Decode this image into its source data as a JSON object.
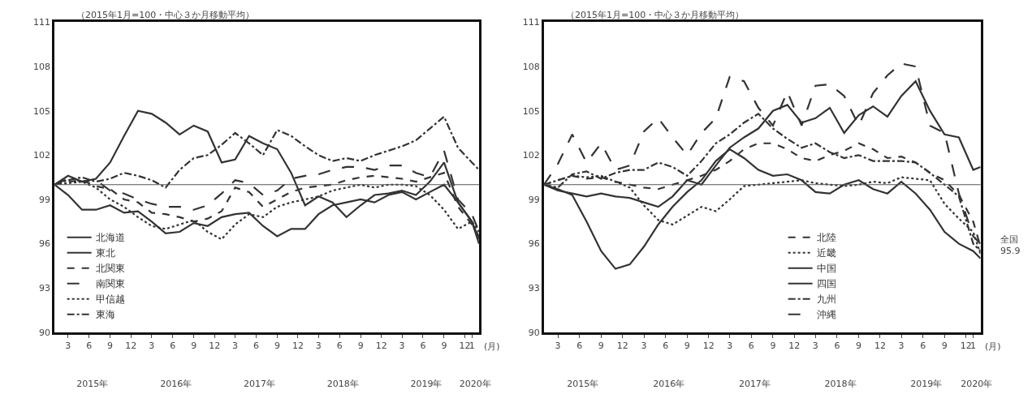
{
  "chart_data": [
    {
      "type": "line",
      "subtitle": "（2015年1月=100・中心３か月移動平均）",
      "xlabel": "(月)",
      "x": [
        "2015-01",
        "2015-03",
        "2015-05",
        "2015-07",
        "2015-09",
        "2015-11",
        "2016-01",
        "2016-03",
        "2016-05",
        "2016-07",
        "2016-09",
        "2016-11",
        "2017-01",
        "2017-03",
        "2017-05",
        "2017-07",
        "2017-09",
        "2017-11",
        "2018-01",
        "2018-03",
        "2018-05",
        "2018-07",
        "2018-09",
        "2018-11",
        "2019-01",
        "2019-03",
        "2019-05",
        "2019-07",
        "2019-09",
        "2019-11",
        "2020-01",
        "2020-02"
      ],
      "series": [
        {
          "name": "北海道",
          "color": "#333333",
          "line_style": "solid",
          "values": [
            100,
            100.6,
            100.2,
            100.4,
            101.5,
            103.3,
            105,
            104.8,
            104.2,
            103.4,
            104,
            103.6,
            101.5,
            101.7,
            103.3,
            102.8,
            102.4,
            100.8,
            98.6,
            99.2,
            98.8,
            97.8,
            98.6,
            99.3,
            99.4,
            99.6,
            99.3,
            100.2,
            101.5,
            98.8,
            97.5,
            96
          ]
        },
        {
          "name": "東北",
          "color": "#333333",
          "line_style": "solid",
          "values": [
            100,
            99.3,
            98.3,
            98.3,
            98.6,
            98.1,
            98.2,
            97.5,
            96.7,
            96.8,
            97.4,
            97.2,
            97.8,
            98,
            98.1,
            97.2,
            96.5,
            97,
            97,
            98,
            98.6,
            98.8,
            99,
            98.8,
            99.3,
            99.5,
            99,
            99.5,
            100,
            98.8,
            97.5,
            96.3
          ]
        },
        {
          "name": "北関東",
          "color": "#333333",
          "line_style": "dashed",
          "values": [
            100,
            100.2,
            100.3,
            99.9,
            99.7,
            99,
            98.8,
            98.1,
            98,
            97.8,
            97.5,
            97.7,
            98.2,
            99.8,
            99.5,
            98.5,
            99,
            99.5,
            99.8,
            99.9,
            100,
            100.3,
            100.5,
            100.6,
            100.5,
            100.4,
            100.2,
            100.5,
            100.8,
            98.5,
            97.3,
            96.5
          ]
        },
        {
          "name": "南関東",
          "color": "#333333",
          "line_style": "longdash",
          "values": [
            100,
            100.4,
            100.2,
            100.3,
            99.6,
            99.4,
            99,
            98.7,
            98.5,
            98.5,
            98.3,
            98.6,
            99.4,
            100.3,
            100.1,
            99.3,
            99.6,
            100.4,
            100.6,
            100.7,
            101,
            101.2,
            101.2,
            101,
            101.3,
            101.3,
            100.8,
            100.5,
            102.3,
            99,
            98,
            96.8
          ]
        },
        {
          "name": "甲信越",
          "color": "#333333",
          "line_style": "dotted",
          "values": [
            100,
            100.1,
            100.2,
            99.8,
            99,
            98.5,
            97.8,
            97.2,
            97,
            97.3,
            97.6,
            96.8,
            96.3,
            97.3,
            98,
            97.8,
            98.5,
            98.8,
            99,
            99.2,
            99.6,
            99.8,
            100,
            99.8,
            100,
            100,
            99.9,
            99.3,
            98.3,
            97,
            97.5,
            96.8
          ]
        },
        {
          "name": "東海",
          "color": "#333333",
          "line_style": "dashdot",
          "values": [
            100,
            100.3,
            100.5,
            100.2,
            100.4,
            100.8,
            100.6,
            100.3,
            99.8,
            101,
            101.8,
            102,
            102.7,
            103.5,
            102.8,
            102,
            103.7,
            103.3,
            102.6,
            102,
            101.6,
            101.8,
            101.6,
            102,
            102.3,
            102.6,
            103,
            103.8,
            104.6,
            102.5,
            101.5,
            101
          ]
        }
      ],
      "xlim": [
        "2015-01",
        "2020-02"
      ],
      "xticks": [
        {
          "value": "2015-03",
          "label": "3"
        },
        {
          "value": "2015-06",
          "label": "6"
        },
        {
          "value": "2015-09",
          "label": "9"
        },
        {
          "value": "2015-12",
          "label": "12"
        },
        {
          "value": "2016-03",
          "label": "3"
        },
        {
          "value": "2016-06",
          "label": "6"
        },
        {
          "value": "2016-09",
          "label": "9"
        },
        {
          "value": "2016-12",
          "label": "12"
        },
        {
          "value": "2017-03",
          "label": "3"
        },
        {
          "value": "2017-06",
          "label": "6"
        },
        {
          "value": "2017-09",
          "label": "9"
        },
        {
          "value": "2017-12",
          "label": "12"
        },
        {
          "value": "2018-03",
          "label": "3"
        },
        {
          "value": "2018-06",
          "label": "6"
        },
        {
          "value": "2018-09",
          "label": "9"
        },
        {
          "value": "2018-12",
          "label": "12"
        },
        {
          "value": "2019-03",
          "label": "3"
        },
        {
          "value": "2019-06",
          "label": "6"
        },
        {
          "value": "2019-09",
          "label": "9"
        },
        {
          "value": "2019-12",
          "label": "12"
        },
        {
          "value": "2020-01",
          "label": "1"
        }
      ],
      "x2lim": [
        "2015-01",
        "2020-02"
      ],
      "x2ticks": [
        {
          "value": "2015-06-15",
          "label": "2015年"
        },
        {
          "value": "2016-06-15",
          "label": "2016年"
        },
        {
          "value": "2017-06-15",
          "label": "2017年"
        },
        {
          "value": "2018-06-15",
          "label": "2018年"
        },
        {
          "value": "2019-06-15",
          "label": "2019年"
        },
        {
          "value": "2020-01-15",
          "label": "2020年"
        }
      ],
      "ylim": [
        90,
        111
      ],
      "yticks": [
        90,
        93,
        96,
        99,
        102,
        105,
        108,
        111
      ],
      "ref_lines": [
        {
          "axis": "y",
          "value": 100,
          "color": "#555555"
        }
      ],
      "legend": "bottom left",
      "marker": "none"
    },
    {
      "type": "line",
      "subtitle": "（2015年1月=100・中心３か月移動平均）",
      "xlabel": "(月)",
      "x": [
        "2015-01",
        "2015-03",
        "2015-05",
        "2015-07",
        "2015-09",
        "2015-11",
        "2016-01",
        "2016-03",
        "2016-05",
        "2016-07",
        "2016-09",
        "2016-11",
        "2017-01",
        "2017-03",
        "2017-05",
        "2017-07",
        "2017-09",
        "2017-11",
        "2018-01",
        "2018-03",
        "2018-05",
        "2018-07",
        "2018-09",
        "2018-11",
        "2019-01",
        "2019-03",
        "2019-05",
        "2019-07",
        "2019-09",
        "2019-11",
        "2020-01",
        "2020-02"
      ],
      "series": [
        {
          "name": "北陸",
          "color": "#333333",
          "line_style": "dashed",
          "values": [
            100,
            100.3,
            100.6,
            100.4,
            100.5,
            100.2,
            100,
            99.8,
            99.7,
            100,
            100.3,
            100.6,
            101,
            101.6,
            102.4,
            102.8,
            102.8,
            102.4,
            101.8,
            101.6,
            102,
            102.3,
            102.8,
            102.4,
            101.8,
            101.9,
            101.5,
            100.8,
            100.3,
            99.3,
            97.5,
            95.8
          ]
        },
        {
          "name": "近畿",
          "color": "#333333",
          "line_style": "dotted",
          "values": [
            100,
            100.3,
            100.6,
            100.5,
            100.6,
            100.2,
            99.8,
            98.6,
            97.6,
            97.3,
            97.9,
            98.5,
            98.2,
            99,
            99.9,
            100,
            100.1,
            100.2,
            100.3,
            100.1,
            100,
            99.9,
            100,
            100.2,
            100.1,
            100.5,
            100.4,
            100.3,
            98.7,
            97.7,
            96.8,
            95.3
          ]
        },
        {
          "name": "中国",
          "color": "#333333",
          "line_style": "solid",
          "values": [
            100,
            99.6,
            99.4,
            99.2,
            99.4,
            99.2,
            99.1,
            98.8,
            98.5,
            99.2,
            100.3,
            100,
            101.3,
            102.5,
            103.2,
            103.8,
            105,
            105.4,
            104.2,
            104.5,
            105.2,
            103.5,
            104.7,
            105.3,
            104.6,
            106,
            107,
            105,
            103.4,
            103.2,
            101,
            101.2
          ]
        },
        {
          "name": "四国",
          "color": "#333333",
          "line_style": "solid",
          "values": [
            100,
            99.7,
            99.3,
            97.5,
            95.5,
            94.3,
            94.6,
            95.8,
            97.3,
            98.5,
            99.5,
            100.3,
            101.6,
            102.4,
            101.8,
            101,
            100.6,
            100.7,
            100.3,
            99.5,
            99.4,
            100,
            100.3,
            99.7,
            99.4,
            100.2,
            99.4,
            98.3,
            96.8,
            96,
            95.5,
            95
          ]
        },
        {
          "name": "九州",
          "color": "#333333",
          "line_style": "dashdot",
          "values": [
            100,
            99.8,
            100.7,
            100.9,
            100.4,
            100.8,
            101,
            101,
            101.5,
            101.2,
            100.6,
            101.6,
            102.8,
            103.4,
            104.2,
            104.8,
            103.8,
            103.1,
            102.5,
            102.8,
            102.2,
            101.8,
            102,
            101.6,
            101.6,
            101.6,
            101.5,
            100.8,
            100,
            99.2,
            96,
            95.5
          ]
        },
        {
          "name": "沖縄",
          "color": "#333333",
          "line_style": "longdash",
          "values": [
            100,
            101.4,
            103.4,
            101.5,
            102.8,
            101,
            101.3,
            103.6,
            104.5,
            103.2,
            102,
            103.5,
            104.5,
            107.3,
            107,
            105.2,
            104,
            106.3,
            104,
            106.7,
            106.8,
            106,
            104,
            106.2,
            107.4,
            108.2,
            108,
            104,
            103.5,
            99.4,
            96.5,
            96
          ]
        }
      ],
      "xlim": [
        "2015-01",
        "2020-02"
      ],
      "xticks": [
        {
          "value": "2015-03",
          "label": "3"
        },
        {
          "value": "2015-06",
          "label": "6"
        },
        {
          "value": "2015-09",
          "label": "9"
        },
        {
          "value": "2015-12",
          "label": "12"
        },
        {
          "value": "2016-03",
          "label": "3"
        },
        {
          "value": "2016-06",
          "label": "6"
        },
        {
          "value": "2016-09",
          "label": "9"
        },
        {
          "value": "2016-12",
          "label": "12"
        },
        {
          "value": "2017-03",
          "label": "3"
        },
        {
          "value": "2017-06",
          "label": "6"
        },
        {
          "value": "2017-09",
          "label": "9"
        },
        {
          "value": "2017-12",
          "label": "12"
        },
        {
          "value": "2018-03",
          "label": "3"
        },
        {
          "value": "2018-06",
          "label": "6"
        },
        {
          "value": "2018-09",
          "label": "9"
        },
        {
          "value": "2018-12",
          "label": "12"
        },
        {
          "value": "2019-03",
          "label": "3"
        },
        {
          "value": "2019-06",
          "label": "6"
        },
        {
          "value": "2019-09",
          "label": "9"
        },
        {
          "value": "2019-12",
          "label": "12"
        },
        {
          "value": "2020-01",
          "label": "1"
        }
      ],
      "x2lim": [
        "2015-01",
        "2020-02"
      ],
      "x2ticks": [
        {
          "value": "2015-06-15",
          "label": "2015年"
        },
        {
          "value": "2016-06-15",
          "label": "2016年"
        },
        {
          "value": "2017-06-15",
          "label": "2017年"
        },
        {
          "value": "2018-06-15",
          "label": "2018年"
        },
        {
          "value": "2019-06-15",
          "label": "2019年"
        },
        {
          "value": "2020-01-15",
          "label": "2020年"
        }
      ],
      "ylim": [
        90,
        111
      ],
      "yticks": [
        90,
        93,
        96,
        99,
        102,
        105,
        108,
        111
      ],
      "ref_lines": [
        {
          "axis": "y",
          "value": 100,
          "color": "#555555"
        }
      ],
      "annotations": [
        {
          "text": "全国\n95.9",
          "x": "2020-02",
          "y": 95.9
        }
      ],
      "legend": "bottom right",
      "marker": "none"
    }
  ]
}
